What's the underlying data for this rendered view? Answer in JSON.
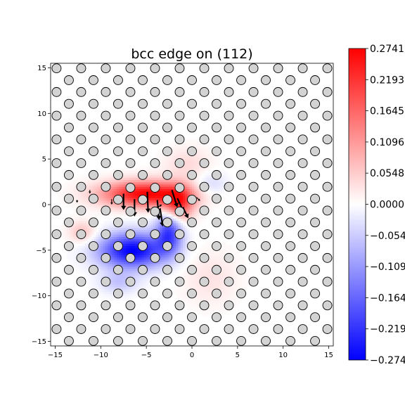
{
  "chart_data": {
    "type": "heatmap",
    "title": "bcc edge on (112)",
    "xlabel": "",
    "ylabel": "",
    "xlim": [
      -15.5,
      15.5
    ],
    "ylim": [
      -15.5,
      15.5
    ],
    "xticks": [
      -15,
      -10,
      -5,
      0,
      5,
      10,
      15
    ],
    "yticks": [
      -15,
      -10,
      -5,
      0,
      5,
      10,
      15
    ],
    "xtick_labels": [
      "−15",
      "−10",
      "−5",
      "0",
      "5",
      "10",
      "15"
    ],
    "ytick_labels": [
      "−15",
      "−10",
      "−5",
      "0",
      "5",
      "10",
      "15"
    ],
    "colorbar": {
      "colormap": "bwr",
      "range": [
        -0.2741,
        0.2741
      ],
      "ticks": [
        0.2741,
        0.2193,
        0.1645,
        0.1096,
        0.0548,
        0.0,
        -0.0548,
        -0.1096,
        -0.1645,
        -0.2193,
        -0.2741
      ],
      "tick_labels": [
        "0.2741",
        "0.2193",
        "0.1645",
        "0.1096",
        "0.0548",
        "0.0000",
        "−0.0548",
        "−0.1096",
        "−0.1645",
        "−0.2193",
        "−0.2741"
      ],
      "colors": {
        "max": "#ff0000",
        "mid": "#ffffff",
        "min": "#0000ff"
      }
    },
    "atom_lattice": {
      "a": 2.7,
      "row_spacing": 1.3,
      "offset": 1.35,
      "y_start": -14.95,
      "y_end": 14.95,
      "x_min": -15.5,
      "x_max": 15.5,
      "marker_color": "#d3d3d3",
      "edge_color": "#000000"
    },
    "field_blobs": [
      {
        "x": -5.0,
        "y": 1.2,
        "sx": 4.8,
        "sy": 1.4,
        "value": 0.2741
      },
      {
        "x": -1.5,
        "y": 0.0,
        "sx": 1.6,
        "sy": 1.8,
        "value": 0.18
      },
      {
        "x": -12.0,
        "y": -3.0,
        "sx": 1.5,
        "sy": 1.2,
        "value": 0.07
      },
      {
        "x": -0.5,
        "y": 4.5,
        "sx": 2.5,
        "sy": 1.8,
        "value": 0.04
      },
      {
        "x": 2.0,
        "y": -8.0,
        "sx": 3.0,
        "sy": 3.0,
        "value": 0.03
      },
      {
        "x": -6.5,
        "y": -5.0,
        "sx": 3.6,
        "sy": 1.9,
        "value": -0.2741
      },
      {
        "x": -2.5,
        "y": -3.0,
        "sx": 1.4,
        "sy": 2.2,
        "value": -0.2
      },
      {
        "x": 2.0,
        "y": 2.2,
        "sx": 1.8,
        "sy": 1.3,
        "value": -0.05
      },
      {
        "x": -8.0,
        "y": -8.5,
        "sx": 2.0,
        "sy": 1.2,
        "value": -0.06
      }
    ],
    "displacement_arrows": [
      {
        "x": -7.5,
        "y": 1.2,
        "dx": 0.0,
        "dy": -1.8
      },
      {
        "x": -6.3,
        "y": 0.6,
        "dx": 0.0,
        "dy": -1.9
      },
      {
        "x": -4.9,
        "y": 1.4,
        "dx": 0.1,
        "dy": -2.3
      },
      {
        "x": -3.8,
        "y": 0.5,
        "dx": 0.2,
        "dy": -2.2
      },
      {
        "x": -3.5,
        "y": -0.4,
        "dx": 0.3,
        "dy": -2.0
      },
      {
        "x": -2.2,
        "y": 1.6,
        "dx": 0.6,
        "dy": -1.9
      },
      {
        "x": -1.6,
        "y": 0.7,
        "dx": 0.7,
        "dy": -1.5
      },
      {
        "x": -1.0,
        "y": -0.3,
        "dx": 0.6,
        "dy": -1.2
      },
      {
        "x": -4.2,
        "y": -0.6,
        "dx": 0.9,
        "dy": 0.6
      },
      {
        "x": -8.8,
        "y": 0.6,
        "dx": 0.0,
        "dy": -0.6
      },
      {
        "x": -9.8,
        "y": -0.6,
        "dx": 0.0,
        "dy": -0.5
      },
      {
        "x": -11.2,
        "y": 1.6,
        "dx": 0.0,
        "dy": -0.4
      },
      {
        "x": 0.5,
        "y": 0.8,
        "dx": 0.4,
        "dy": -0.4
      },
      {
        "x": -12.6,
        "y": 0.5,
        "dx": 0.0,
        "dy": -0.3
      }
    ]
  }
}
